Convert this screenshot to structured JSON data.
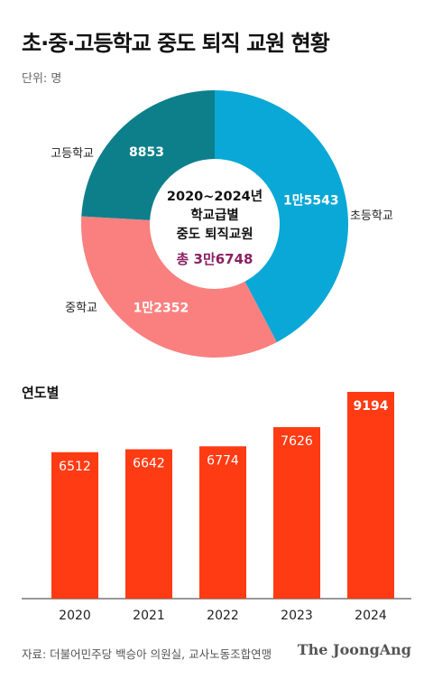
{
  "header": {
    "title": "초·중·고등학교 중도 퇴직 교원 현황",
    "unit": "단위: 명"
  },
  "footer": {
    "source": "자료: 더불어민주당 백승아 의원실, 교사노동조합연맹",
    "brand": "The JoongAng"
  },
  "colors": {
    "elementary": "#0aa8d6",
    "middle": "#f9807f",
    "high": "#0d7f8a",
    "bar": "#ff3b14",
    "total": "#8b1f63"
  },
  "chart_data": [
    {
      "type": "pie",
      "center_text": [
        "2020~2024년",
        "학교급별",
        "중도 퇴직교원"
      ],
      "total_label": "총 3만6748",
      "slices": [
        {
          "name": "초등학교",
          "value": 15543,
          "label": "1만5543"
        },
        {
          "name": "중학교",
          "value": 12352,
          "label": "1만2352"
        },
        {
          "name": "고등학교",
          "value": 8853,
          "label": "8853"
        }
      ]
    },
    {
      "type": "bar",
      "title": "연도별",
      "categories": [
        "2020",
        "2021",
        "2022",
        "2023",
        "2024"
      ],
      "values": [
        6512,
        6642,
        6774,
        7626,
        9194
      ],
      "ylim": [
        0,
        9194
      ]
    }
  ]
}
